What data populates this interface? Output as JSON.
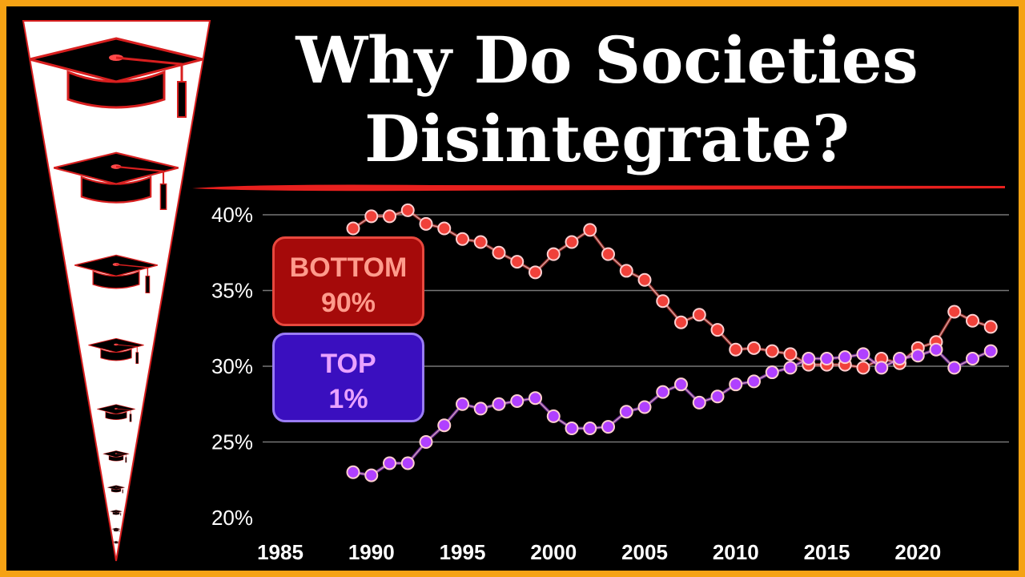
{
  "title": {
    "line1": "Why Do Societies",
    "line2": "Disintegrate?"
  },
  "colors": {
    "frame": "#f5a214",
    "background": "#000000",
    "bottom_series": "#f0413a",
    "top_series": "#b040ff",
    "underline": "#e8201e",
    "grid": "#777777"
  },
  "icons": [
    "graduation-cap-icon"
  ],
  "legend": {
    "bottom": {
      "line1": "BOTTOM",
      "line2": "90%"
    },
    "top": {
      "line1": "TOP",
      "line2": "1%"
    }
  },
  "chart_data": {
    "type": "line",
    "title": "",
    "xlabel": "",
    "ylabel": "",
    "xlim": [
      1985,
      2025
    ],
    "ylim": [
      20,
      40
    ],
    "grid": true,
    "x_ticks": [
      {
        "value": 1985,
        "label": "1985"
      },
      {
        "value": 1990,
        "label": "1990"
      },
      {
        "value": 1995,
        "label": "1995"
      },
      {
        "value": 2000,
        "label": "2000"
      },
      {
        "value": 2005,
        "label": "2005"
      },
      {
        "value": 2010,
        "label": "2010"
      },
      {
        "value": 2015,
        "label": "2015"
      },
      {
        "value": 2020,
        "label": "2020"
      }
    ],
    "y_ticks": [
      {
        "value": 20,
        "label": "20%"
      },
      {
        "value": 25,
        "label": "25%"
      },
      {
        "value": 30,
        "label": "30%"
      },
      {
        "value": 35,
        "label": "35%"
      },
      {
        "value": 40,
        "label": "40%"
      }
    ],
    "x": [
      1989,
      1990,
      1991,
      1992,
      1993,
      1994,
      1995,
      1996,
      1997,
      1998,
      1999,
      2000,
      2001,
      2002,
      2003,
      2004,
      2005,
      2006,
      2007,
      2008,
      2009,
      2010,
      2011,
      2012,
      2013,
      2014,
      2015,
      2016,
      2017,
      2018,
      2019,
      2020,
      2021,
      2022,
      2023,
      2024
    ],
    "series": [
      {
        "key": "bottom",
        "values": [
          39.1,
          39.9,
          39.9,
          40.3,
          39.4,
          39.1,
          38.4,
          38.2,
          37.5,
          36.9,
          36.2,
          37.4,
          38.2,
          39.0,
          37.4,
          36.3,
          35.7,
          34.3,
          32.9,
          33.4,
          32.4,
          31.1,
          31.2,
          31.0,
          30.8,
          30.1,
          30.1,
          30.1,
          29.9,
          30.5,
          30.2,
          31.2,
          31.6,
          33.6,
          33.0,
          32.6
        ],
        "color": "#f0413a"
      },
      {
        "key": "top",
        "values": [
          23.0,
          22.8,
          23.6,
          23.6,
          25.0,
          26.1,
          27.5,
          27.2,
          27.5,
          27.7,
          27.9,
          26.7,
          25.9,
          25.9,
          26.0,
          27.0,
          27.3,
          28.3,
          28.8,
          27.6,
          28.0,
          28.8,
          29.0,
          29.6,
          29.9,
          30.5,
          30.5,
          30.6,
          30.8,
          29.9,
          30.5,
          30.7,
          31.1,
          29.9,
          30.5,
          31.0
        ],
        "color": "#b040ff"
      }
    ]
  }
}
